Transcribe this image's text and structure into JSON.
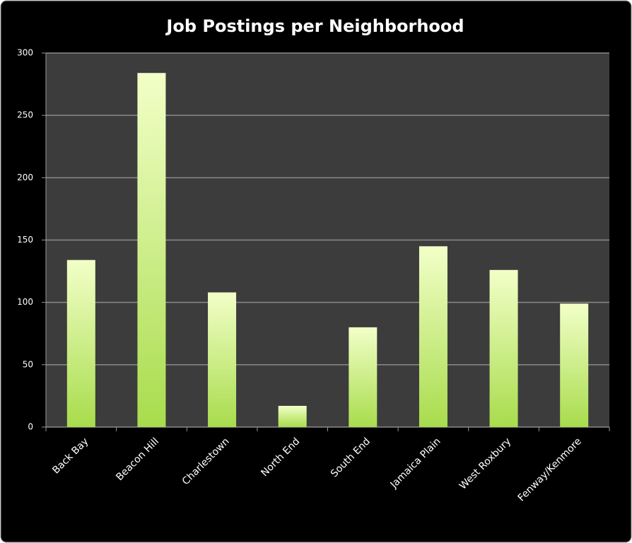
{
  "chart_data": {
    "type": "bar",
    "title": "Job Postings per Neighborhood",
    "categories": [
      "Back Bay",
      "Beacon Hill",
      "Charlestown",
      "North End",
      "South End",
      "Jamaica Plain",
      "West Roxbury",
      "Fenway/Kenmore"
    ],
    "values": [
      134,
      284,
      108,
      17,
      80,
      145,
      126,
      99
    ],
    "color": "#a8dc4c",
    "ylim": [
      0,
      300
    ],
    "yticks": [
      0,
      50,
      100,
      150,
      200,
      250,
      300
    ],
    "grid": true
  }
}
